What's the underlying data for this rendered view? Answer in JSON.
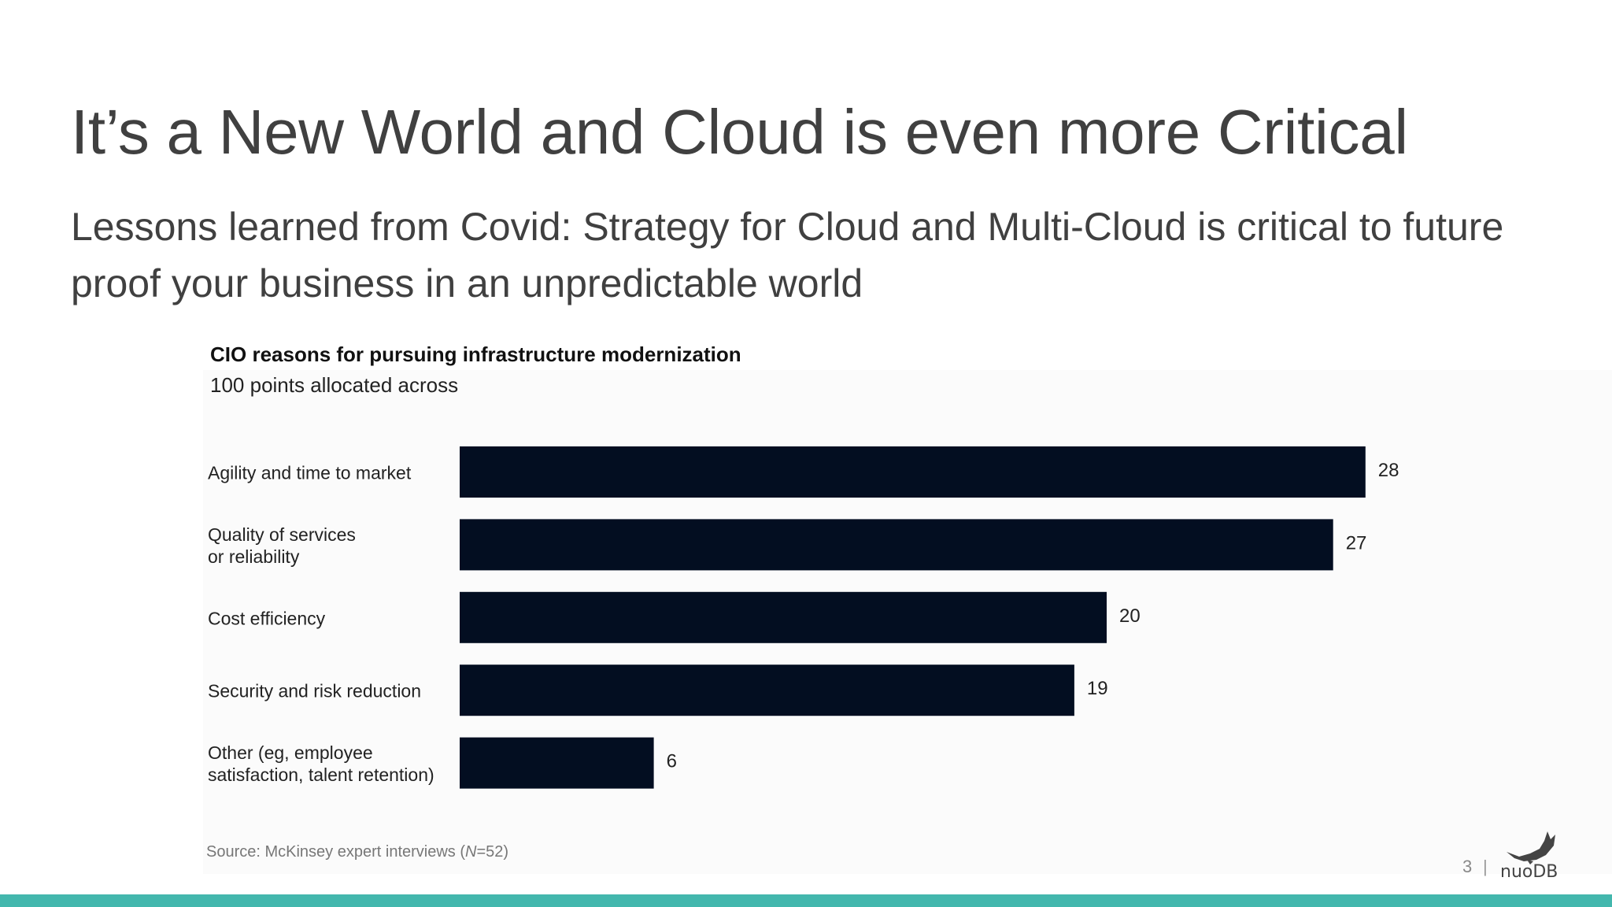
{
  "slide": {
    "title": "It’s a New World and Cloud is even more Critical",
    "subtitle": "Lessons learned from Covid: Strategy for Cloud and Multi-Cloud is critical to future proof your business in an unpredictable world",
    "page_number": "3",
    "separator": "|",
    "logo_text": "nuoDB"
  },
  "chart_data": {
    "type": "bar",
    "orientation": "horizontal",
    "title": "CIO reasons for pursuing infrastructure modernization",
    "subtitle": "100 points allocated across",
    "categories": [
      [
        "Agility and time to market"
      ],
      [
        "Quality of services",
        "or reliability"
      ],
      [
        "Cost efficiency"
      ],
      [
        "Security and risk reduction"
      ],
      [
        "Other (eg, employee",
        "satisfaction, talent retention)"
      ]
    ],
    "values": [
      28,
      27,
      20,
      19,
      6
    ],
    "data_labels": [
      "28",
      "27",
      "20",
      "19",
      "6"
    ],
    "bar_color": "#030e21",
    "source_prefix": "Source: McKinsey expert interviews (",
    "source_italic": "N",
    "source_suffix": "=52)",
    "grid": false
  }
}
